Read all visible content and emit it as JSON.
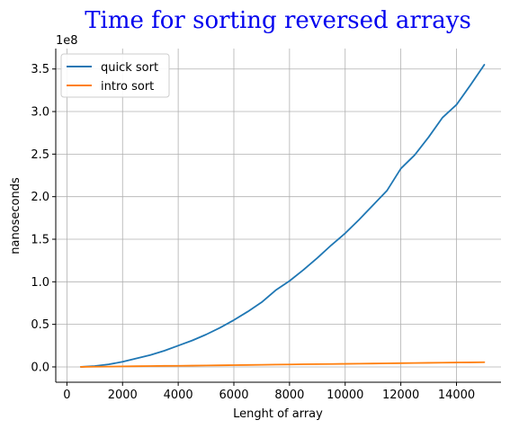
{
  "chart_data": {
    "type": "line",
    "title": "Time for sorting reversed arrays",
    "xlabel": "Lenght of array",
    "ylabel": "nanoseconds",
    "y_offset_label": "1e8",
    "xlim": [
      -400,
      15600
    ],
    "ylim": [
      -0.18,
      3.74
    ],
    "x_ticks": [
      0,
      2000,
      4000,
      6000,
      8000,
      10000,
      12000,
      14000
    ],
    "x_tick_labels": [
      "0",
      "2000",
      "4000",
      "6000",
      "8000",
      "10000",
      "12000",
      "14000"
    ],
    "y_ticks": [
      0,
      0.5,
      1.0,
      1.5,
      2.0,
      2.5,
      3.0,
      3.5
    ],
    "y_tick_labels": [
      "0.0",
      "0.5",
      "1.0",
      "1.5",
      "2.0",
      "2.5",
      "3.0",
      "3.5"
    ],
    "grid": true,
    "legend_position": "top-left",
    "series": [
      {
        "name": "quick sort",
        "color": "#1f77b4",
        "x": [
          500,
          1000,
          1500,
          2000,
          2500,
          3000,
          3500,
          4000,
          4500,
          5000,
          5500,
          6000,
          6500,
          7000,
          7500,
          8000,
          8500,
          9000,
          9500,
          10000,
          10500,
          11000,
          11500,
          12000,
          12500,
          13000,
          13500,
          14000,
          14500,
          15000
        ],
        "y": [
          0.0,
          0.01,
          0.03,
          0.06,
          0.1,
          0.14,
          0.19,
          0.25,
          0.31,
          0.38,
          0.46,
          0.55,
          0.65,
          0.76,
          0.9,
          1.01,
          1.14,
          1.28,
          1.43,
          1.57,
          1.73,
          1.9,
          2.07,
          2.33,
          2.49,
          2.7,
          2.93,
          3.08,
          3.31,
          3.55
        ]
      },
      {
        "name": "intro sort",
        "color": "#ff7f0e",
        "x": [
          500,
          1000,
          1500,
          2000,
          2500,
          3000,
          3500,
          4000,
          4500,
          5000,
          5500,
          6000,
          6500,
          7000,
          7500,
          8000,
          8500,
          9000,
          9500,
          10000,
          10500,
          11000,
          11500,
          12000,
          12500,
          13000,
          13500,
          14000,
          14500,
          15000
        ],
        "y": [
          0.0,
          0.002,
          0.004,
          0.006,
          0.008,
          0.01,
          0.012,
          0.013,
          0.015,
          0.017,
          0.019,
          0.021,
          0.023,
          0.025,
          0.027,
          0.029,
          0.031,
          0.033,
          0.034,
          0.036,
          0.038,
          0.04,
          0.042,
          0.044,
          0.046,
          0.048,
          0.05,
          0.052,
          0.053,
          0.055
        ]
      }
    ]
  }
}
